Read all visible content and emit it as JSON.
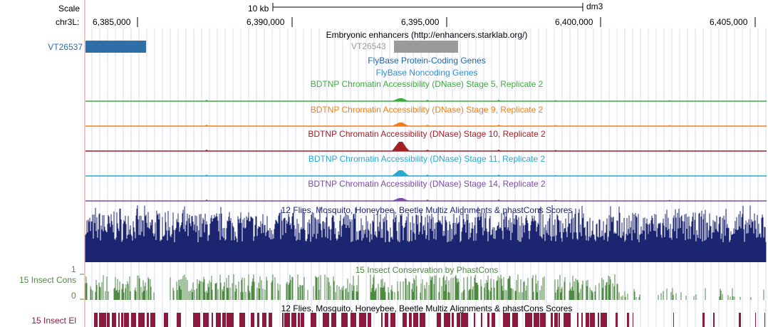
{
  "browser": {
    "scale_label": "Scale",
    "scale_bar_text": "10 kb",
    "assembly": "dm3",
    "chrom_label": "chr3L:",
    "positions": [
      "6,385,000",
      "6,390,000",
      "6,395,000",
      "6,400,000",
      "6,405,000"
    ]
  },
  "tracks": {
    "enhancers": {
      "title": "Embryonic enhancers (http://enhancers.starklab.org/)",
      "items": [
        "VT26537",
        "VT26543"
      ],
      "colors": [
        "#2f6ea6",
        "#9a9a9a"
      ]
    },
    "flybase_coding": {
      "title": "FlyBase Protein-Coding Genes",
      "color": "#1a66b3"
    },
    "flybase_noncoding": {
      "title": "FlyBase Noncoding Genes",
      "color": "#2e8fd6"
    },
    "dnase": [
      {
        "title": "BDTNP Chromatin Accessibility (DNase) Stage 5, Replicate 2",
        "color": "#3cad3c"
      },
      {
        "title": "BDTNP Chromatin Accessibility (DNase) Stage 9, Replicate 2",
        "color": "#f07f1a"
      },
      {
        "title": "BDTNP Chromatin Accessibility (DNase) Stage 10, Replicate 2",
        "color": "#a41f23"
      },
      {
        "title": "BDTNP Chromatin Accessibility (DNase) Stage 11, Replicate 2",
        "color": "#28a9d1"
      },
      {
        "title": "BDTNP Chromatin Accessibility (DNase) Stage 14, Replicate 2",
        "color": "#7b4ea8"
      }
    ],
    "multiz": {
      "title": "12 Flies, Mosquito, Honeybee, Beetle Multiz Alignments & phastCons Scores",
      "color": "#1c2670"
    },
    "phastcons": {
      "title": "15 Insect Conservation by PhastCons",
      "label": "15 Insect Cons",
      "axis_max": "1",
      "axis_min": "0",
      "color": "#4f8a43"
    },
    "elements": {
      "title": "12 Flies, Mosquito, Honeybee, Beetle Multiz Alignments & phastCons Scores",
      "label": "15 Insect El",
      "color": "#8b1a3c"
    }
  }
}
